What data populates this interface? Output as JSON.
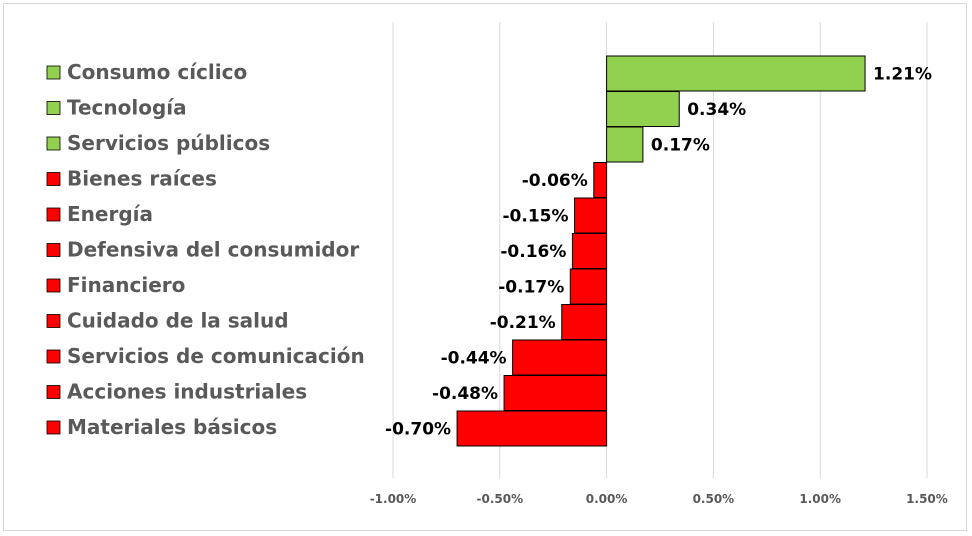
{
  "chart_data": {
    "type": "bar",
    "orientation": "horizontal",
    "title": "",
    "xlabel": "",
    "ylabel": "",
    "categories": [
      "Consumo cíclico",
      "Tecnología",
      "Servicios públicos",
      "Bienes raíces",
      "Energía",
      "Defensiva del consumidor",
      "Financiero",
      "Cuidado de la salud",
      "Servicios de comunicación",
      "Acciones industriales",
      "Materiales básicos"
    ],
    "values": [
      1.21,
      0.34,
      0.17,
      -0.06,
      -0.15,
      -0.16,
      -0.17,
      -0.21,
      -0.44,
      -0.48,
      -0.7
    ],
    "value_labels": [
      "1.21%",
      "0.34%",
      "0.17%",
      "-0.06%",
      "-0.15%",
      "-0.16%",
      "-0.17%",
      "-0.21%",
      "-0.44%",
      "-0.48%",
      "-0.70%"
    ],
    "xlim": [
      -1.0,
      1.5
    ],
    "x_ticks": [
      -1.0,
      -0.5,
      0.0,
      0.5,
      1.0,
      1.5
    ],
    "x_tick_labels": [
      "-1.00%",
      "-0.50%",
      "0.00%",
      "0.50%",
      "1.00%",
      "1.50%"
    ],
    "grid": "vertical",
    "legend": "left",
    "colors": {
      "positive": "#92d050",
      "negative": "#ff0000",
      "bar_border": "#000000",
      "grid": "#d9d9d9"
    }
  }
}
